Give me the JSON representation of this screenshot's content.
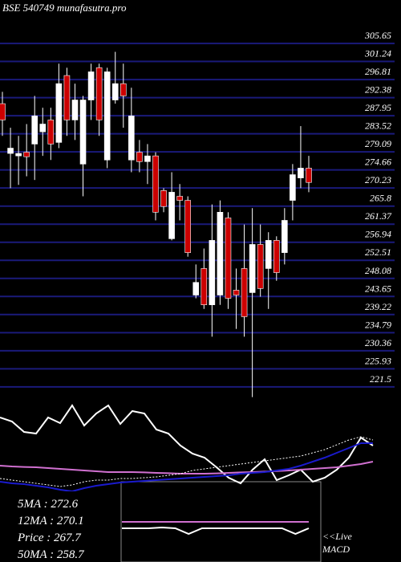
{
  "chart_data": [
    {
      "type": "candlestick",
      "title": "BSE 540749 munafasutra.pro",
      "open": [
        290.9,
        278.7,
        278.1,
        279.0,
        281.0,
        284.0,
        286.9,
        281.4,
        297.8,
        286.9,
        276.1,
        291.8,
        299.7,
        277.1,
        291.8,
        295.8,
        277.1,
        279.0,
        276.7,
        278.1,
        269.6,
        257.8,
        268.2,
        267.2,
        244.0,
        250.5,
        241.6,
        244.0,
        262.9,
        245.2,
        250.5,
        244.6,
        256.4,
        250.5,
        257.4,
        254.4,
        267.2,
        272.7,
        275.1
      ],
      "high": [
        293.8,
        285.0,
        283.0,
        285.9,
        292.8,
        289.9,
        289.9,
        300.7,
        299.7,
        295.8,
        292.8,
        300.7,
        300.7,
        299.7,
        303.6,
        300.7,
        294.8,
        282.0,
        281.0,
        279.0,
        270.2,
        274.1,
        271.2,
        268.2,
        251.5,
        255.4,
        266.2,
        267.2,
        264.3,
        250.5,
        261.3,
        265.3,
        261.3,
        259.4,
        258.4,
        265.3,
        276.1,
        285.4,
        278.1
      ],
      "low": [
        283.0,
        270.2,
        271.0,
        273.1,
        272.2,
        278.1,
        277.1,
        280.0,
        283.0,
        282.0,
        268.2,
        286.9,
        283.0,
        275.1,
        290.9,
        285.0,
        274.1,
        274.1,
        271.2,
        262.3,
        264.3,
        257.4,
        262.3,
        253.4,
        243.2,
        240.6,
        233.8,
        241.6,
        240.6,
        235.7,
        233.8,
        219.0,
        243.6,
        240.6,
        247.5,
        251.5,
        262.3,
        270.2,
        269.2
      ],
      "close": [
        286.9,
        280.0,
        278.7,
        277.9,
        287.9,
        285.9,
        281.0,
        295.8,
        286.9,
        291.8,
        291.8,
        298.7,
        286.9,
        298.7,
        295.8,
        292.8,
        287.9,
        276.7,
        278.1,
        264.3,
        265.7,
        269.2,
        267.2,
        254.4,
        247.1,
        241.6,
        257.4,
        264.3,
        243.2,
        244.0,
        238.7,
        256.4,
        245.6,
        257.4,
        249.5,
        262.3,
        273.5,
        275.1,
        271.6
      ],
      "up_color": "#ffffff",
      "down_color": "#cc0000",
      "grid_color": "#1a1a7a",
      "ylim": [
        219.9,
        316.3
      ],
      "yticks": [
        305.65,
        301.24,
        296.81,
        292.38,
        287.95,
        283.52,
        279.09,
        274.66,
        270.23,
        265.8,
        261.37,
        256.94,
        252.51,
        248.08,
        243.65,
        239.22,
        234.79,
        230.36,
        225.93,
        221.5
      ],
      "grid": true
    },
    {
      "type": "line",
      "ylim": [
        0,
        100
      ],
      "series": [
        {
          "color": "#ffffff",
          "values": [
            90,
            87.5,
            81,
            80,
            90,
            86.5,
            97.5,
            85,
            92.5,
            97.5,
            86,
            94,
            92.5,
            82.5,
            80,
            72.5,
            67.5,
            65,
            59,
            52.5,
            49,
            57.5,
            64,
            51,
            54,
            57.5,
            50,
            52.5,
            57.5,
            65,
            77.5,
            72.5
          ]
        },
        {
          "color": "#d070d0",
          "values": [
            60,
            59.5,
            59.2,
            59,
            58.5,
            58,
            57.5,
            57,
            56.5,
            56,
            56,
            56,
            55.8,
            55.5,
            55.3,
            55,
            55,
            55,
            55.2,
            55.5,
            55.8,
            56,
            56.3,
            56.6,
            57,
            57.5,
            58,
            58.5,
            59,
            60,
            61,
            62.5
          ]
        },
        {
          "color": "#1a1acc",
          "values": [
            50,
            49,
            48.5,
            47.5,
            46.5,
            45,
            44,
            46,
            47.5,
            48.5,
            49.5,
            50,
            50.5,
            51,
            51.5,
            52,
            52.5,
            53,
            53.5,
            54,
            55,
            55.5,
            56,
            57,
            58,
            60,
            62.5,
            65,
            68,
            71,
            74,
            74
          ]
        },
        {
          "color": "#ffffff",
          "dashed": true,
          "values": [
            52,
            51,
            50,
            49,
            48,
            47,
            48,
            50,
            51,
            51,
            52,
            52,
            52.5,
            53,
            54,
            55,
            57,
            58,
            59,
            60,
            61,
            62,
            63,
            64,
            65,
            66,
            68,
            70,
            73,
            76,
            78,
            76
          ]
        }
      ]
    },
    {
      "type": "line",
      "ylim": [
        0,
        100
      ],
      "series": [
        {
          "color": "#ffffff",
          "values": [
            42,
            42,
            42,
            43,
            42,
            35,
            42,
            42,
            42,
            42,
            42,
            42,
            42,
            35,
            42
          ]
        },
        {
          "color": "#d070d0",
          "values": [
            50,
            50,
            50,
            50,
            50,
            50,
            50,
            50,
            50,
            50,
            50,
            50,
            50,
            50,
            50
          ]
        }
      ]
    },
    {
      "type": "text",
      "labels": [
        "5MA : 272.6",
        "12MA : 270.1",
        "Price  : 267.7",
        "50MA : 258.7"
      ],
      "note": [
        "<<Live",
        "MACD"
      ]
    }
  ]
}
